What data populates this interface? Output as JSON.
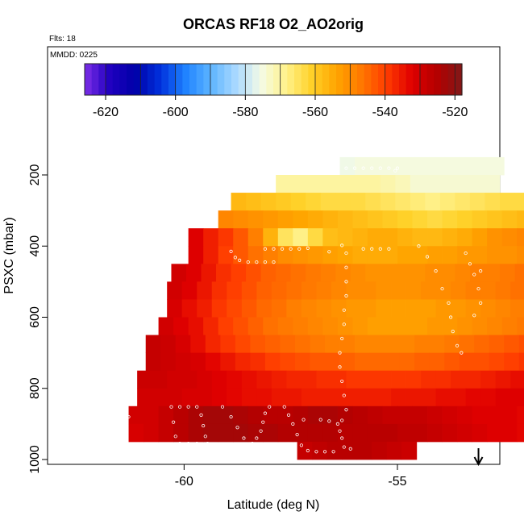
{
  "chart_data": {
    "type": "heatmap",
    "title": "ORCAS RF18 O2_AO2orig",
    "annotations": {
      "flts": "Flts: 18",
      "mmdd": "MMDD: 0225"
    },
    "xlabel": "Latitude (deg N)",
    "ylabel": "PSXC (mbar)",
    "xlim": [
      -63.2,
      -52.6
    ],
    "ylim": [
      1000,
      105
    ],
    "y_reversed": true,
    "x_ticks": [
      -60,
      -55
    ],
    "x_tick_labels": [
      "-60",
      "-55"
    ],
    "y_ticks": [
      200,
      400,
      600,
      800,
      1000
    ],
    "y_tick_labels": [
      "200",
      "400",
      "600",
      "800",
      "1000"
    ],
    "colorbar": {
      "range": [
        -626,
        -518
      ],
      "ticks": [
        -620,
        -600,
        -580,
        -560,
        -540,
        -520
      ],
      "tick_labels": [
        "-620",
        "-600",
        "-580",
        "-560",
        "-540",
        "-520"
      ],
      "colors": [
        "#7d2ee8",
        "#1f00bf",
        "#0000a8",
        "#0030dc",
        "#1e82ff",
        "#5cb4ff",
        "#a8d8ff",
        "#f4fbe6",
        "#fff28c",
        "#ffd22a",
        "#ffa500",
        "#ff7800",
        "#ff3c00",
        "#e00000",
        "#b40000",
        "#801818"
      ]
    },
    "cell_width_deg": 0.35,
    "cell_height_mbar": 50,
    "rows": [
      {
        "p": 175,
        "x0": -56.35,
        "values": [
          -576,
          -575,
          -575,
          -575,
          -575,
          -575,
          -575,
          -575,
          -575,
          -575,
          -575
        ]
      },
      {
        "p": 225,
        "x0": -57.85,
        "values": [
          -570,
          -570,
          -570,
          -570,
          -570,
          -570,
          -570,
          -571,
          -572,
          -574,
          -574,
          -574,
          -574,
          -574,
          -574
        ]
      },
      {
        "p": 275,
        "x0": -58.9,
        "values": [
          -557,
          -558,
          -559,
          -560,
          -561,
          -562,
          -563,
          -563,
          -563,
          -564,
          -565,
          -566,
          -567,
          -568,
          -567,
          -566,
          -565,
          -564,
          -563,
          -563,
          -565,
          -567
        ]
      },
      {
        "p": 325,
        "x0": -59.2,
        "values": [
          -549,
          -550,
          -551,
          -552,
          -553,
          -554,
          -555,
          -556,
          -557,
          -558,
          -559,
          -560,
          -561,
          -562,
          -563,
          -562,
          -561,
          -560,
          -559,
          -558,
          -557,
          -556,
          -555,
          -554,
          -553,
          -552,
          -551,
          -550
        ]
      },
      {
        "p": 375,
        "x0": -59.9,
        "values": [
          -532,
          -536,
          -539,
          -543,
          -548,
          -556,
          -565,
          -568,
          -563,
          -558,
          -557,
          -556,
          -555,
          -555,
          -556,
          -557,
          -557,
          -556,
          -555,
          -553,
          -551,
          -550,
          -549,
          -548,
          -547,
          -546,
          -545,
          -544,
          -543,
          -540,
          -536
        ]
      },
      {
        "p": 425,
        "x0": -59.9,
        "values": [
          -532,
          -536,
          -540,
          -543,
          -546,
          -548,
          -550,
          -551,
          -552,
          -553,
          -554,
          -555,
          -555,
          -555,
          -554,
          -554,
          -553,
          -553,
          -552,
          -552,
          -551,
          -551,
          -550,
          -549,
          -548,
          -547,
          -546,
          -544,
          -542,
          -538,
          -534
        ]
      },
      {
        "p": 475,
        "x0": -60.3,
        "values": [
          -530,
          -532,
          -535,
          -538,
          -540,
          -542,
          -544,
          -545,
          -546,
          -547,
          -548,
          -549,
          -550,
          -551,
          -551,
          -551,
          -551,
          -550,
          -550,
          -549,
          -548,
          -548,
          -547,
          -546,
          -545,
          -544,
          -543,
          -542,
          -540,
          -538,
          -535,
          -532,
          -530
        ]
      },
      {
        "p": 525,
        "x0": -60.4,
        "values": [
          -530,
          -532,
          -535,
          -538,
          -540,
          -542,
          -544,
          -545,
          -546,
          -547,
          -548,
          -549,
          -550,
          -550,
          -551,
          -551,
          -551,
          -550,
          -550,
          -549,
          -548,
          -548,
          -547,
          -546,
          -545,
          -544,
          -543,
          -541,
          -539,
          -537,
          -534,
          -532,
          -530
        ]
      },
      {
        "p": 575,
        "x0": -60.4,
        "values": [
          -531,
          -534,
          -536,
          -539,
          -541,
          -543,
          -545,
          -546,
          -548,
          -549,
          -550,
          -551,
          -552,
          -552,
          -553,
          -553,
          -553,
          -553,
          -552,
          -552,
          -551,
          -550,
          -549,
          -548,
          -547,
          -546,
          -545,
          -543,
          -541,
          -539,
          -536,
          -533,
          -531
        ]
      },
      {
        "p": 625,
        "x0": -60.6,
        "values": [
          -530,
          -532,
          -534,
          -537,
          -540,
          -542,
          -544,
          -546,
          -547,
          -548,
          -549,
          -550,
          -551,
          -552,
          -553,
          -553,
          -553,
          -553,
          -552,
          -552,
          -551,
          -550,
          -549,
          -548,
          -547,
          -546,
          -545,
          -544,
          -542,
          -540,
          -537,
          -534,
          -531,
          -529
        ]
      },
      {
        "p": 675,
        "x0": -60.9,
        "values": [
          -528,
          -529,
          -531,
          -534,
          -537,
          -539,
          -541,
          -543,
          -544,
          -545,
          -546,
          -547,
          -548,
          -548,
          -549,
          -549,
          -549,
          -549,
          -548,
          -548,
          -547,
          -546,
          -545,
          -544,
          -543,
          -542,
          -541,
          -540,
          -538,
          -536,
          -534,
          -531,
          -529,
          -528,
          -527
        ]
      },
      {
        "p": 725,
        "x0": -60.9,
        "values": [
          -528,
          -529,
          -530,
          -531,
          -533,
          -535,
          -537,
          -538,
          -540,
          -541,
          -542,
          -543,
          -543,
          -544,
          -545,
          -545,
          -545,
          -545,
          -544,
          -544,
          -543,
          -542,
          -542,
          -541,
          -540,
          -539,
          -538,
          -537,
          -535,
          -533,
          -531,
          -530,
          -529,
          -528,
          -527
        ]
      },
      {
        "p": 775,
        "x0": -61.1,
        "values": [
          -529,
          -529,
          -530,
          -530,
          -531,
          -532,
          -533,
          -534,
          -535,
          -536,
          -537,
          -537,
          -538,
          -538,
          -539,
          -539,
          -539,
          -539,
          -539,
          -538,
          -538,
          -537,
          -537,
          -536,
          -535,
          -534,
          -533,
          -532,
          -531,
          -530,
          -529,
          -529,
          -528,
          -528,
          -528,
          -528
        ]
      },
      {
        "p": 825,
        "x0": -61.1,
        "values": [
          -530,
          -530,
          -530,
          -531,
          -531,
          -532,
          -533,
          -534,
          -534,
          -535,
          -535,
          -536,
          -536,
          -536,
          -536,
          -536,
          -536,
          -535,
          -535,
          -535,
          -534,
          -534,
          -533,
          -533,
          -532,
          -532,
          -531,
          -531,
          -530,
          -530,
          -530,
          -530,
          -530,
          -530,
          -530,
          -530
        ]
      },
      {
        "p": 875,
        "x0": -61.3,
        "values": [
          -530,
          -530,
          -528,
          -526,
          -524,
          -523,
          -523,
          -524,
          -525,
          -526,
          -526,
          -525,
          -524,
          -524,
          -525,
          -526,
          -527,
          -528,
          -528,
          -528,
          -529,
          -530,
          -531,
          -532,
          -532,
          -532,
          -533,
          -533,
          -533,
          -533,
          -534,
          -534,
          -534,
          -534,
          -534,
          -534,
          -535,
          -535
        ]
      },
      {
        "p": 925,
        "x0": -61.3,
        "values": [
          -531,
          -530,
          -528,
          -526,
          -524,
          -523,
          -523,
          -523,
          -524,
          -524,
          -525,
          -525,
          -525,
          -525,
          -526,
          -526,
          -526,
          -526,
          -527,
          -527,
          -528,
          -529,
          -530,
          -531,
          -532,
          -532,
          -533,
          -533,
          -533
        ]
      },
      {
        "p": 975,
        "x0": -57.35,
        "values": [
          -528,
          -527,
          -526,
          -526,
          -526,
          -527,
          -528,
          -529
        ]
      }
    ],
    "flight_points": [
      [
        -56.2,
        181
      ],
      [
        -56,
        181
      ],
      [
        -55.8,
        181
      ],
      [
        -55.6,
        181
      ],
      [
        -55.4,
        181
      ],
      [
        -55.2,
        181
      ],
      [
        -55,
        181
      ],
      [
        -55.05,
        188
      ],
      [
        -56.8,
        187
      ],
      [
        -57.1,
        406
      ],
      [
        -57.3,
        408
      ],
      [
        -57.5,
        408
      ],
      [
        -57.7,
        408
      ],
      [
        -57.9,
        408
      ],
      [
        -58.1,
        408
      ],
      [
        -56.6,
        416
      ],
      [
        -56.3,
        398
      ],
      [
        -55.2,
        408
      ],
      [
        -55.4,
        408
      ],
      [
        -55.6,
        408
      ],
      [
        -55.8,
        408
      ],
      [
        -58.9,
        415
      ],
      [
        -58.8,
        432
      ],
      [
        -58.7,
        440
      ],
      [
        -58.5,
        445
      ],
      [
        -58.3,
        445
      ],
      [
        -58.1,
        445
      ],
      [
        -57.9,
        445
      ],
      [
        -60.3,
        385
      ],
      [
        -60.35,
        410
      ],
      [
        -60.5,
        430
      ],
      [
        -60.55,
        455
      ],
      [
        -60.6,
        490
      ],
      [
        -60.7,
        530
      ],
      [
        -60.8,
        570
      ],
      [
        -60.9,
        610
      ],
      [
        -61,
        650
      ],
      [
        -61.05,
        690
      ],
      [
        -61.1,
        730
      ],
      [
        -61.15,
        770
      ],
      [
        -61.2,
        800
      ],
      [
        -61.25,
        840
      ],
      [
        -61.3,
        880
      ],
      [
        -61.35,
        920
      ],
      [
        -61.4,
        955
      ],
      [
        -60.3,
        852
      ],
      [
        -60.1,
        852
      ],
      [
        -59.9,
        852
      ],
      [
        -59.7,
        852
      ],
      [
        -60.25,
        895
      ],
      [
        -60.2,
        935
      ],
      [
        -60.1,
        955
      ],
      [
        -59.9,
        955
      ],
      [
        -59.7,
        955
      ],
      [
        -59.6,
        875
      ],
      [
        -59.55,
        905
      ],
      [
        -59.5,
        935
      ],
      [
        -59.45,
        955
      ],
      [
        -59.1,
        852
      ],
      [
        -58.9,
        880
      ],
      [
        -58.75,
        910
      ],
      [
        -58.6,
        940
      ],
      [
        -58.4,
        955
      ],
      [
        -58.0,
        852
      ],
      [
        -58.1,
        870
      ],
      [
        -58.15,
        895
      ],
      [
        -58.2,
        920
      ],
      [
        -58.3,
        940
      ],
      [
        -57.65,
        852
      ],
      [
        -57.55,
        875
      ],
      [
        -57.45,
        900
      ],
      [
        -57.35,
        930
      ],
      [
        -57.25,
        960
      ],
      [
        -57.1,
        975
      ],
      [
        -56.9,
        978
      ],
      [
        -56.7,
        978
      ],
      [
        -56.5,
        978
      ],
      [
        -57.2,
        888
      ],
      [
        -56.8,
        888
      ],
      [
        -56.6,
        892
      ],
      [
        -56.4,
        900
      ],
      [
        -56.35,
        920
      ],
      [
        -56.3,
        940
      ],
      [
        -56.25,
        965
      ],
      [
        -56.1,
        970
      ],
      [
        -56.3,
        890
      ],
      [
        -56.2,
        860
      ],
      [
        -56.25,
        820
      ],
      [
        -56.3,
        780
      ],
      [
        -56.35,
        740
      ],
      [
        -56.35,
        700
      ],
      [
        -56.3,
        660
      ],
      [
        -56.25,
        620
      ],
      [
        -56.25,
        580
      ],
      [
        -56.2,
        540
      ],
      [
        -56.2,
        500
      ],
      [
        -56.2,
        460
      ],
      [
        -56.2,
        420
      ],
      [
        -54.5,
        400
      ],
      [
        -54.3,
        430
      ],
      [
        -54.1,
        470
      ],
      [
        -53.95,
        520
      ],
      [
        -53.8,
        560
      ],
      [
        -53.75,
        600
      ],
      [
        -53.7,
        640
      ],
      [
        -53.6,
        680
      ],
      [
        -53.5,
        700
      ],
      [
        -53.4,
        420
      ],
      [
        -53.3,
        450
      ],
      [
        -53.2,
        480
      ],
      [
        -53.1,
        520
      ],
      [
        -53.05,
        560
      ],
      [
        -53.2,
        595
      ],
      [
        -53.05,
        470
      ]
    ],
    "arrow_x": -53.1
  }
}
